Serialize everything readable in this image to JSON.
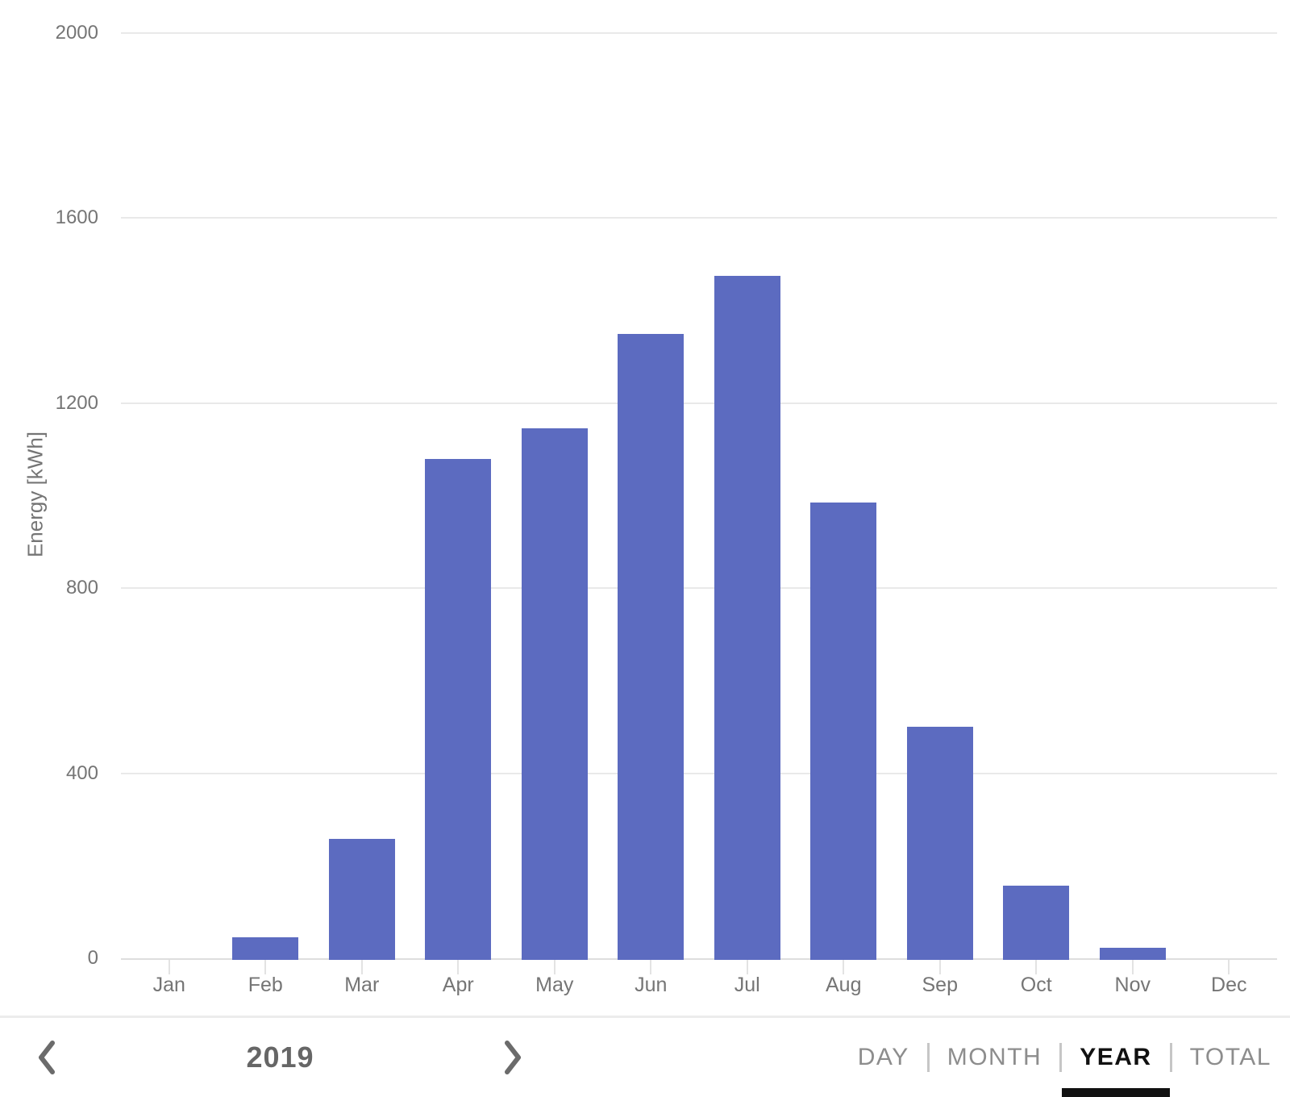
{
  "chart": {
    "ylabel": "Energy [kWh]",
    "yticks": [
      2000,
      1600,
      1200,
      800,
      400,
      0
    ],
    "colors": {
      "bar": "#5C6BC0",
      "gridline": "#e9e9e9",
      "baseline": "#dedede",
      "x_tick": "#e3e3e3",
      "axis_label": "#757575"
    }
  },
  "chart_data": {
    "type": "bar",
    "title": "",
    "xlabel": "",
    "ylabel": "Energy [kWh]",
    "categories": [
      "Jan",
      "Feb",
      "Mar",
      "Apr",
      "May",
      "Jun",
      "Jul",
      "Aug",
      "Sep",
      "Oct",
      "Nov",
      "Dec"
    ],
    "values": [
      0,
      45,
      258,
      1080,
      1145,
      1350,
      1475,
      985,
      500,
      157,
      23,
      0
    ],
    "ylim": [
      0,
      2000
    ],
    "grid": true,
    "legend": false
  },
  "footer": {
    "prev_icon": "chevron-left-icon",
    "next_icon": "chevron-right-icon",
    "year_label": "2019",
    "tabs": [
      {
        "label": "DAY",
        "selected": false
      },
      {
        "label": "MONTH",
        "selected": false
      },
      {
        "label": "YEAR",
        "selected": true
      },
      {
        "label": "TOTAL",
        "selected": false
      }
    ]
  }
}
